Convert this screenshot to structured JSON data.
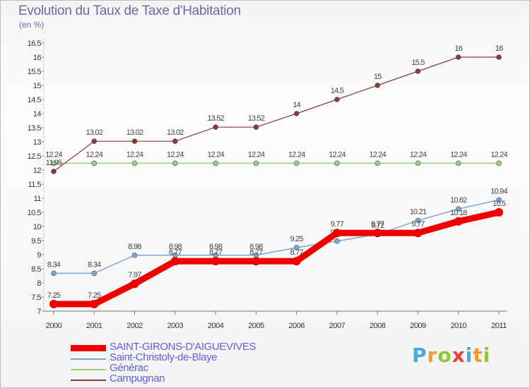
{
  "title": "Evolution du Taux de Taxe d'Habitation",
  "unit_label": "(en %)",
  "logo": {
    "letters": [
      "P",
      "r",
      "o",
      "x",
      "i",
      "t",
      "i"
    ],
    "colors": [
      "#4aa8e0",
      "#f29a2e",
      "#8cc63f",
      "#e5403a",
      "#4aa8e0",
      "#f29a2e",
      "#8cc63f"
    ]
  },
  "chart_data": {
    "type": "line",
    "categories": [
      "2000",
      "2001",
      "2002",
      "2003",
      "2004",
      "2005",
      "2006",
      "2007",
      "2008",
      "2009",
      "2010",
      "2011"
    ],
    "ylim": [
      7,
      16.5
    ],
    "yticks": [
      "7",
      "7.5",
      "8",
      "8.5",
      "9",
      "9.5",
      "10",
      "10.5",
      "11",
      "11.5",
      "12",
      "12.5",
      "13",
      "13.5",
      "14",
      "14.5",
      "15",
      "15.5",
      "16",
      "16.5"
    ],
    "grid": false,
    "legend_position": "bottom-left",
    "series": [
      {
        "name": "SAINT-GIRONS-D'AIGUEVIVES",
        "color": "#ee0000",
        "values": [
          7.25,
          7.25,
          7.97,
          8.77,
          8.77,
          8.77,
          8.77,
          9.77,
          9.77,
          9.77,
          10.18,
          10.5
        ],
        "labels": [
          "7.25",
          "7.25",
          "7.97",
          "8.77",
          "8.77",
          "8.77",
          "8.77",
          "9.77",
          "9.77",
          "9.77",
          "10.18",
          "10.5"
        ]
      },
      {
        "name": "Saint-Christoly-de-Blaye",
        "color": "#79a7d4",
        "values": [
          8.34,
          8.34,
          8.98,
          8.98,
          8.98,
          8.98,
          9.25,
          9.48,
          9.72,
          10.21,
          10.62,
          10.94
        ],
        "labels": [
          "8.34",
          "8.34",
          "8.98",
          "8.98",
          "8.98",
          "8.98",
          "9.25",
          "9.48",
          "9.72",
          "10.21",
          "10.62",
          "10.94"
        ]
      },
      {
        "name": "Générac",
        "color": "#99d17a",
        "values": [
          12.24,
          12.24,
          12.24,
          12.24,
          12.24,
          12.24,
          12.24,
          12.24,
          12.24,
          12.24,
          12.24,
          12.24
        ],
        "labels": [
          "12.24",
          "12.24",
          "12.24",
          "12.24",
          "12.24",
          "12.24",
          "12.24",
          "12.24",
          "12.24",
          "12.24",
          "12.24",
          "12.24"
        ]
      },
      {
        "name": "Campugnan",
        "color": "#8a3a3a",
        "values": [
          11.95,
          13.02,
          13.02,
          13.02,
          13.52,
          13.52,
          14,
          14.5,
          15,
          15.5,
          16,
          16
        ],
        "labels": [
          "11.95",
          "13.02",
          "13.02",
          "13.02",
          "13.52",
          "13.52",
          "14",
          "14.5",
          "15",
          "15.5",
          "16",
          "16"
        ]
      }
    ]
  }
}
